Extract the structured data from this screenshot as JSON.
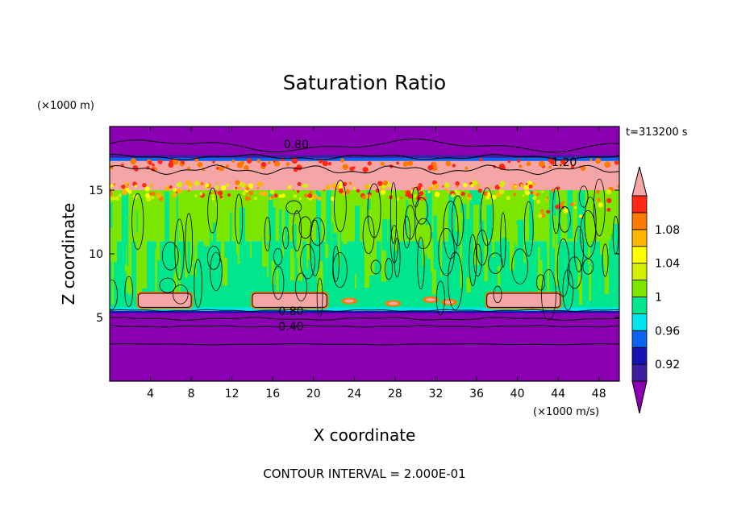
{
  "chart_data": {
    "type": "heatmap",
    "title": "Saturation Ratio",
    "xlabel": "X coordinate",
    "ylabel": "Z coordinate",
    "x_unit": "(×1000 m/s)",
    "y_unit": "(×1000 m)",
    "time_label": "t=313200 s",
    "footer": "CONTOUR INTERVAL = 2.000E-01",
    "xlim": [
      0,
      50
    ],
    "ylim": [
      0,
      20
    ],
    "x_ticks": [
      4,
      8,
      12,
      16,
      20,
      24,
      28,
      32,
      36,
      40,
      44,
      48
    ],
    "y_ticks": [
      5,
      10,
      15
    ],
    "colorbar": {
      "levels": [
        0.92,
        0.96,
        1,
        1.04,
        1.08
      ],
      "colors": [
        "#8c00b4",
        "#3c1ea0",
        "#1414b4",
        "#0a64f0",
        "#00e6f0",
        "#00e68c",
        "#7de600",
        "#d2f000",
        "#ffff00",
        "#ffb400",
        "#ff7800",
        "#ff2814",
        "#f5a5a5"
      ]
    },
    "contour_labels": [
      {
        "text": "0.80",
        "x": 18.3,
        "y": 18.6
      },
      {
        "text": "1.20",
        "x": 44.6,
        "y": 17.2
      },
      {
        "text": "0.80",
        "x": 17.8,
        "y": 5.5
      },
      {
        "text": "0.40",
        "x": 17.8,
        "y": 4.3
      }
    ],
    "bands": [
      {
        "z0": 0,
        "z1": 5.5,
        "value": 0.4,
        "color": "#8c00b4"
      },
      {
        "z0": 5.5,
        "z1": 11,
        "value": 0.99,
        "color": "#00e68c"
      },
      {
        "z0": 11,
        "z1": 15,
        "value": 1.0,
        "color": "#7de600"
      },
      {
        "z0": 15,
        "z1": 17.3,
        "value": 1.2,
        "color": "#f5a5a5"
      },
      {
        "z0": 17.3,
        "z1": 20,
        "value": 0.7,
        "color": "#8c00b4"
      }
    ]
  }
}
